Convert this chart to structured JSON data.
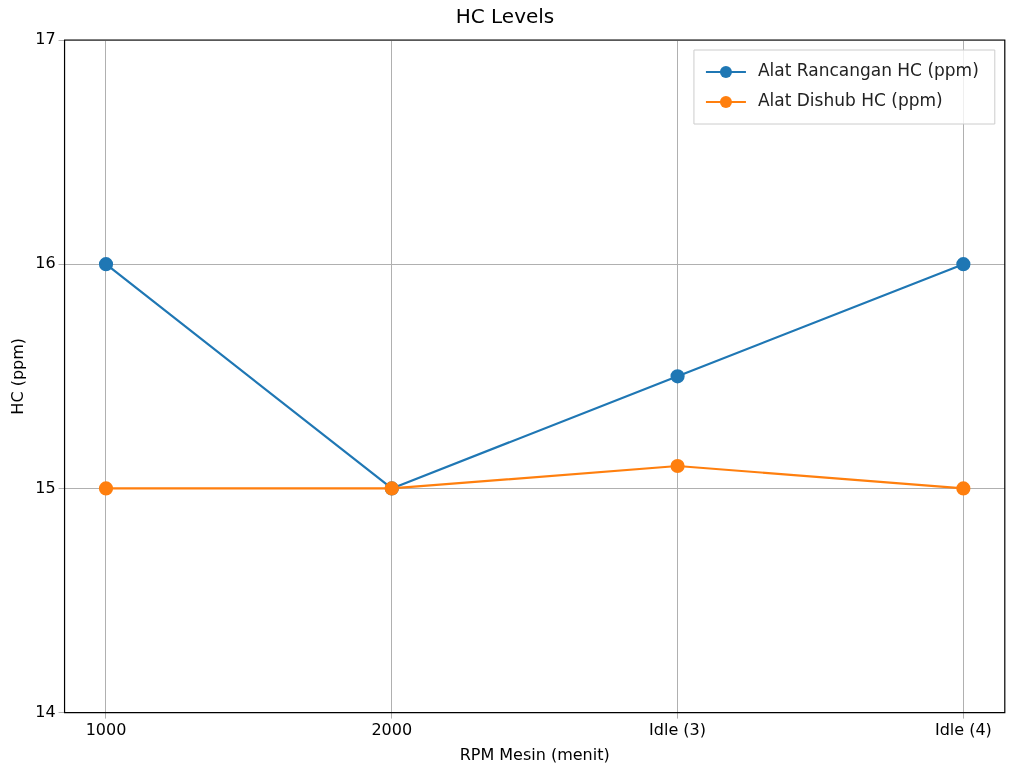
{
  "chart_data": {
    "type": "line",
    "title": "HC Levels",
    "xlabel": "RPM Mesin (menit)",
    "ylabel": "HC (ppm)",
    "categories": [
      "1000",
      "2000",
      "Idle (3)",
      "Idle (4)"
    ],
    "series": [
      {
        "name": "Alat Rancangan HC (ppm)",
        "color": "#1f77b4",
        "values": [
          16,
          15,
          15.5,
          16
        ]
      },
      {
        "name": "Alat Dishub HC (ppm)",
        "color": "#ff7f0e",
        "values": [
          15,
          15,
          15.1,
          15
        ]
      }
    ],
    "ylim": [
      14,
      17
    ],
    "yticks": [
      14,
      15,
      16,
      17
    ],
    "grid": true,
    "legend": "top right",
    "marker": "circle",
    "line_style": "solid"
  }
}
